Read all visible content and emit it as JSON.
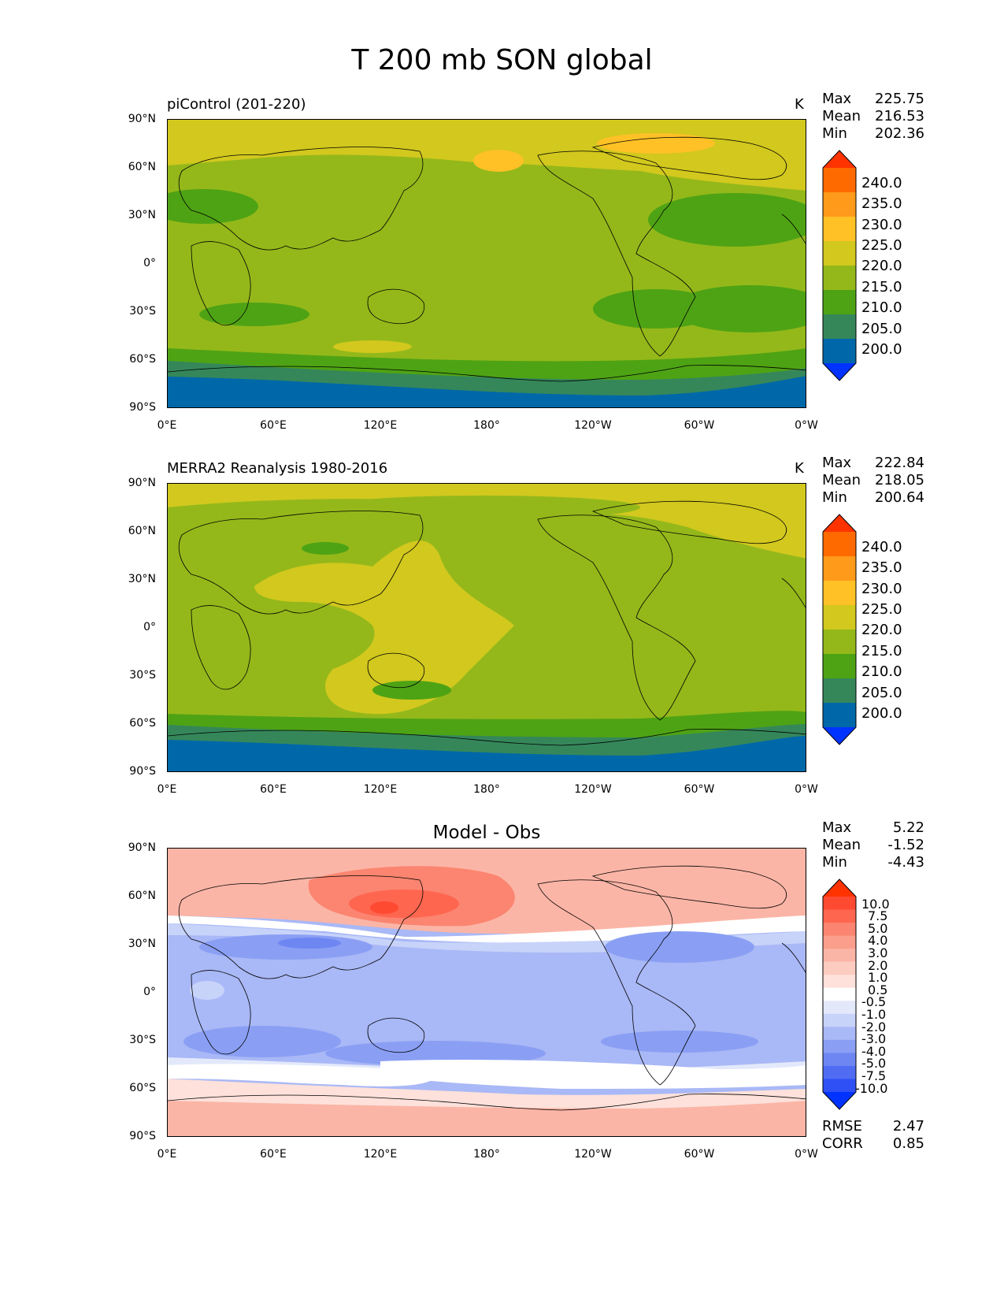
{
  "title": "T 200 mb SON global",
  "panels": [
    {
      "label": "piControl (201-220)",
      "units": "K",
      "stats": {
        "max_label": "Max",
        "max": "225.75",
        "mean_label": "Mean",
        "mean": "216.53",
        "min_label": "Min",
        "min": "202.36"
      },
      "colorbar": {
        "labels": [
          "240.0",
          "235.0",
          "230.0",
          "225.0",
          "220.0",
          "215.0",
          "210.0",
          "205.0",
          "200.0"
        ],
        "colors": [
          "#ff3300",
          "#ff6a00",
          "#ff9a1a",
          "#ffc125",
          "#d2c81e",
          "#94b81a",
          "#4ea314",
          "#35875a",
          "#0068a8",
          "#0033ff"
        ]
      }
    },
    {
      "label": "MERRA2 Reanalysis 1980-2016",
      "units": "K",
      "stats": {
        "max_label": "Max",
        "max": "222.84",
        "mean_label": "Mean",
        "mean": "218.05",
        "min_label": "Min",
        "min": "200.64"
      },
      "colorbar": {
        "labels": [
          "240.0",
          "235.0",
          "230.0",
          "225.0",
          "220.0",
          "215.0",
          "210.0",
          "205.0",
          "200.0"
        ],
        "colors": [
          "#ff3300",
          "#ff6a00",
          "#ff9a1a",
          "#ffc125",
          "#d2c81e",
          "#94b81a",
          "#4ea314",
          "#35875a",
          "#0068a8",
          "#0033ff"
        ]
      }
    },
    {
      "title": "Model - Obs",
      "stats": {
        "max_label": "Max",
        "max": "5.22",
        "mean_label": "Mean",
        "mean": "-1.52",
        "min_label": "Min",
        "min": "-4.43"
      },
      "colorbar": {
        "labels": [
          "10.0",
          "7.5",
          "5.0",
          "4.0",
          "3.0",
          "2.0",
          "1.0",
          "0.5",
          "-0.5",
          "-1.0",
          "-2.0",
          "-3.0",
          "-4.0",
          "-5.0",
          "-7.5",
          "-10.0"
        ],
        "colors": [
          "#ff3300",
          "#ff4a32",
          "#ff6650",
          "#fb8570",
          "#fb9e8c",
          "#fbb5a6",
          "#fcccc0",
          "#fde1da",
          "#ffffff",
          "#e3e9fb",
          "#c8d3fa",
          "#a9b8f6",
          "#8a9ff4",
          "#6e86f2",
          "#4f6cf3",
          "#2e50f5",
          "#0033ff"
        ]
      },
      "rmse_label": "RMSE",
      "rmse": "2.47",
      "corr_label": "CORR",
      "corr": "0.85"
    }
  ],
  "axes": {
    "y_ticks": [
      "90°N",
      "60°N",
      "30°N",
      "0°",
      "30°S",
      "60°S",
      "90°S"
    ],
    "x_ticks": [
      "0°E",
      "60°E",
      "120°E",
      "180°",
      "120°W",
      "60°W",
      "0°W"
    ]
  }
}
